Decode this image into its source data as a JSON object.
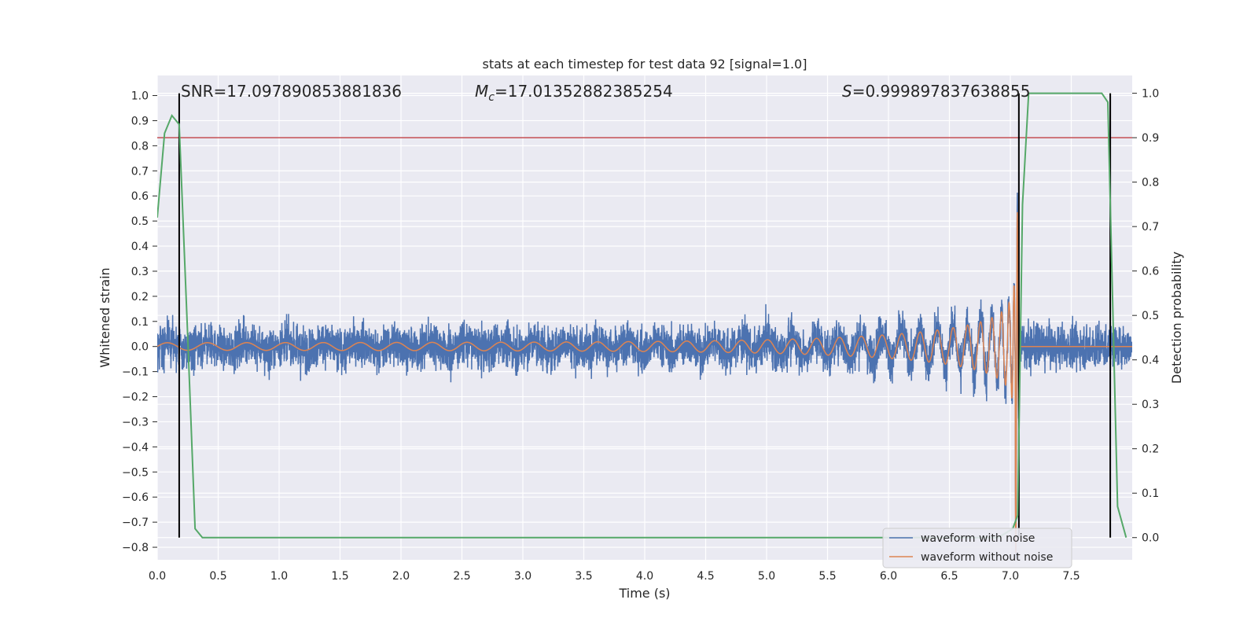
{
  "chart_data": {
    "type": "line",
    "title": "stats at each timestep for test data 92 [signal=1.0]",
    "xlabel": "Time (s)",
    "ylabel": "Whitened strain",
    "y2label": "Detection probability",
    "xlim": [
      0.0,
      8.0
    ],
    "ylim": [
      -0.85,
      1.08
    ],
    "y2lim": [
      -0.05,
      1.04
    ],
    "xticks": [
      0.0,
      0.5,
      1.0,
      1.5,
      2.0,
      2.5,
      3.0,
      3.5,
      4.0,
      4.5,
      5.0,
      5.5,
      6.0,
      6.5,
      7.0,
      7.5
    ],
    "yticks": [
      1.0,
      0.9,
      0.8,
      0.7,
      0.6,
      0.5,
      0.4,
      0.3,
      0.2,
      0.1,
      0.0,
      -0.1,
      -0.2,
      -0.3,
      -0.4,
      -0.5,
      -0.6,
      -0.7,
      -0.8
    ],
    "y2ticks": [
      1.0,
      0.9,
      0.8,
      0.7,
      0.6,
      0.5,
      0.4,
      0.3,
      0.2,
      0.1,
      0.0
    ],
    "grid": true,
    "legend_position": "bottom-right",
    "colors": {
      "noise": "#4c72b0",
      "clean": "#dd8452",
      "probability": "#55a868",
      "threshold": "#c44e52",
      "marker": "#000000",
      "background": "#eaeaf2",
      "grid": "#ffffff"
    },
    "annotations": {
      "snr_text": "SNR=17.097890853881836",
      "mc_symbol": "M",
      "mc_sub": "c",
      "mc_value": "=17.01352882385254",
      "s_symbol": "S",
      "s_value": "=0.999897837638855"
    },
    "threshold_y": 0.9,
    "vertical_markers": [
      0.18,
      7.07,
      7.82
    ],
    "waveform": {
      "noise_amplitude": 0.13,
      "signal_start_amplitude": 0.015,
      "merger_time": 7.04,
      "peak_amplitude": 0.95,
      "start_frequency": 3.0,
      "end_frequency": 40.0
    },
    "series": [
      {
        "name": "waveform with noise",
        "role": "noise"
      },
      {
        "name": "waveform without noise",
        "role": "clean"
      },
      {
        "role": "probability",
        "x": [
          0.0,
          0.06,
          0.12,
          0.18,
          0.25,
          0.31,
          0.37,
          0.5,
          1.0,
          2.0,
          3.0,
          4.0,
          5.0,
          6.0,
          6.9,
          7.02,
          7.06,
          7.1,
          7.15,
          7.5,
          7.7,
          7.75,
          7.8,
          7.88,
          7.95
        ],
        "values": [
          0.72,
          0.91,
          0.95,
          0.93,
          0.45,
          0.02,
          0.0,
          0.0,
          0.0,
          0.0,
          0.0,
          0.0,
          0.0,
          0.0,
          0.0,
          0.02,
          0.05,
          0.75,
          1.0,
          1.0,
          1.0,
          1.0,
          0.98,
          0.07,
          0.0
        ]
      }
    ],
    "legend": [
      "waveform with noise",
      "waveform without noise"
    ]
  }
}
